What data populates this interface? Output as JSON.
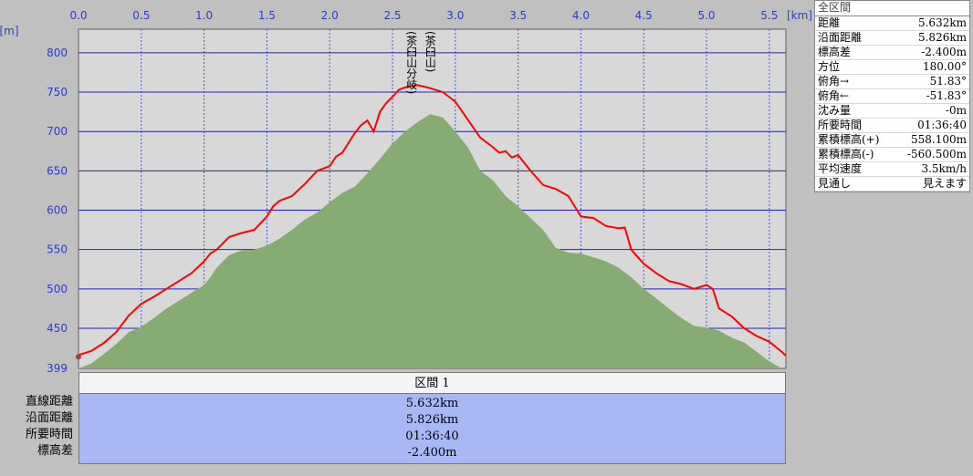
{
  "chart_data": {
    "type": "area",
    "x_unit_label": "[km]",
    "y_unit_label": "[m]",
    "xlim": [
      0,
      5.632
    ],
    "ylim": [
      399,
      830
    ],
    "x_ticks": [
      "0.0",
      "0.5",
      "1.0",
      "1.5",
      "2.0",
      "2.5",
      "3.0",
      "3.5",
      "4.0",
      "4.5",
      "5.0",
      "5.5"
    ],
    "y_ticks": [
      "800",
      "750",
      "700",
      "650",
      "600",
      "550",
      "500",
      "450"
    ],
    "y_min_label": "399",
    "grid": true,
    "series": [
      {
        "kind": "route",
        "x": [
          0,
          0.1,
          0.2,
          0.3,
          0.4,
          0.5,
          0.6,
          0.7,
          0.8,
          0.9,
          1.0,
          1.05,
          1.1,
          1.2,
          1.3,
          1.4,
          1.5,
          1.55,
          1.6,
          1.7,
          1.8,
          1.9,
          2.0,
          2.05,
          2.1,
          2.2,
          2.25,
          2.3,
          2.35,
          2.4,
          2.45,
          2.5,
          2.55,
          2.6,
          2.7,
          2.8,
          2.9,
          3.0,
          3.1,
          3.2,
          3.3,
          3.35,
          3.4,
          3.45,
          3.5,
          3.6,
          3.7,
          3.8,
          3.9,
          4.0,
          4.1,
          4.2,
          4.3,
          4.35,
          4.4,
          4.5,
          4.6,
          4.7,
          4.8,
          4.9,
          5.0,
          5.05,
          5.1,
          5.2,
          5.3,
          5.4,
          5.5,
          5.6,
          5.632
        ],
        "y": [
          416,
          421,
          431,
          445,
          466,
          481,
          490,
          500,
          510,
          520,
          535,
          545,
          550,
          566,
          571,
          575,
          592,
          605,
          612,
          618,
          633,
          650,
          656,
          668,
          673,
          698,
          708,
          714,
          700,
          725,
          736,
          744,
          753,
          756,
          759,
          755,
          750,
          738,
          715,
          692,
          680,
          673,
          675,
          667,
          670,
          650,
          632,
          627,
          618,
          592,
          590,
          580,
          577,
          578,
          550,
          532,
          520,
          510,
          506,
          500,
          505,
          500,
          475,
          465,
          450,
          440,
          433,
          420,
          415
        ]
      },
      {
        "kind": "terrain",
        "x": [
          0,
          0.1,
          0.2,
          0.3,
          0.4,
          0.5,
          0.6,
          0.7,
          0.8,
          0.9,
          1.0,
          1.05,
          1.1,
          1.2,
          1.3,
          1.4,
          1.5,
          1.6,
          1.7,
          1.8,
          1.9,
          2.0,
          2.1,
          2.2,
          2.3,
          2.4,
          2.5,
          2.6,
          2.7,
          2.8,
          2.9,
          3.0,
          3.1,
          3.2,
          3.3,
          3.4,
          3.5,
          3.6,
          3.7,
          3.8,
          3.9,
          4.0,
          4.1,
          4.2,
          4.3,
          4.4,
          4.5,
          4.6,
          4.7,
          4.8,
          4.9,
          5.0,
          5.1,
          5.2,
          5.3,
          5.4,
          5.5,
          5.6,
          5.632
        ],
        "y": [
          399,
          405,
          417,
          430,
          445,
          452,
          463,
          475,
          485,
          495,
          505,
          515,
          527,
          543,
          549,
          550,
          555,
          564,
          575,
          588,
          597,
          610,
          622,
          630,
          647,
          665,
          685,
          700,
          712,
          722,
          718,
          700,
          680,
          650,
          638,
          618,
          605,
          590,
          575,
          552,
          546,
          545,
          540,
          535,
          527,
          515,
          500,
          488,
          475,
          463,
          453,
          451,
          447,
          438,
          432,
          420,
          408,
          399,
          399
        ]
      }
    ],
    "annotations": [
      "(茶臼山分岐)",
      "(茶臼山)"
    ],
    "annotation_x": [
      2.65,
      2.8
    ],
    "colors": {
      "route": "#ff0000",
      "terrain": "#86ac74",
      "plot_bg": "#d8d8d8",
      "grid_h": "#2020d0",
      "grid_v": "#4a5ad0"
    }
  },
  "info_panel": {
    "header": "全区間",
    "rows": [
      {
        "label": "距離",
        "value": "5.632km"
      },
      {
        "label": "沿面距離",
        "value": "5.826km"
      },
      {
        "label": "標高差",
        "value": "-2.400m"
      },
      {
        "label": "方位",
        "value": "180.00°"
      },
      {
        "label": "俯角→",
        "value": "51.83°"
      },
      {
        "label": "俯角←",
        "value": "-51.83°"
      },
      {
        "label": "沈み量",
        "value": "-0m"
      },
      {
        "label": "所要時間",
        "value": "01:36:40"
      },
      {
        "label": "累積標高(+)",
        "value": "558.100m"
      },
      {
        "label": "累積標高(-)",
        "value": "-560.500m"
      },
      {
        "label": "平均速度",
        "value": "3.5km/h"
      },
      {
        "label": "見通し",
        "value": "見えます"
      }
    ]
  },
  "section": {
    "title": "区間 1",
    "labels": [
      "直線距離",
      "沿面距離",
      "所要時間",
      "標高差"
    ],
    "values": [
      "5.632km",
      "5.826km",
      "01:36:40",
      "-2.400m"
    ]
  }
}
